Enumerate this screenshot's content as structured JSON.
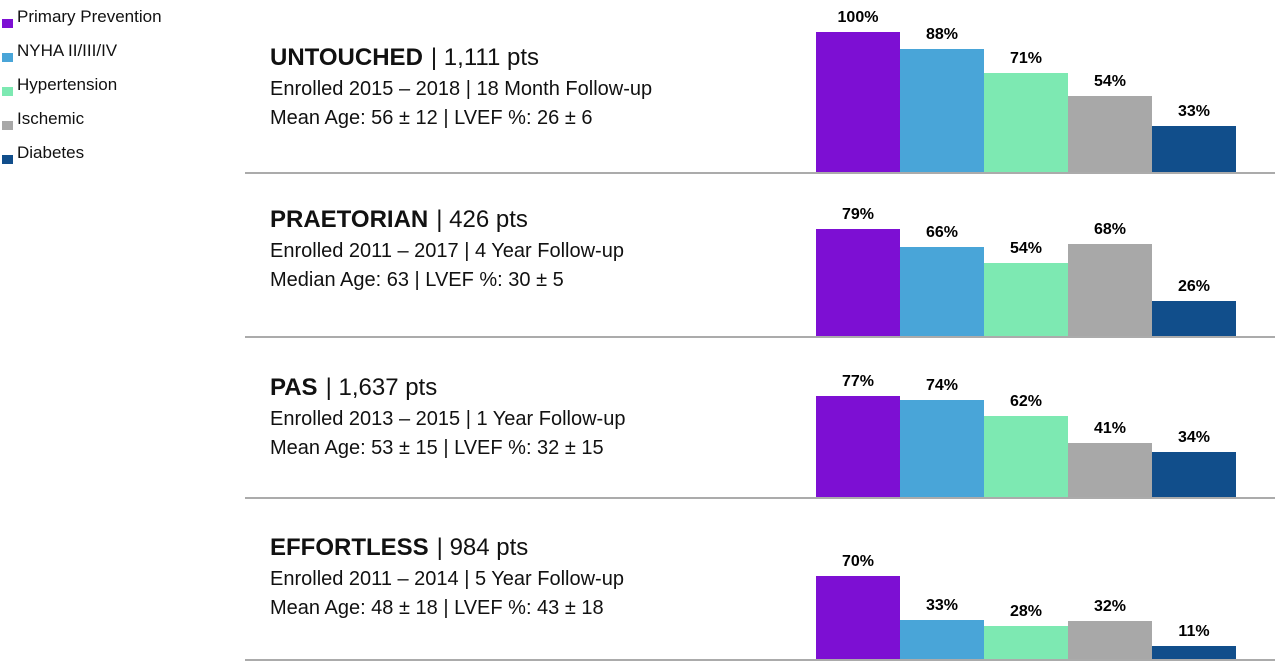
{
  "legend": {
    "items": [
      {
        "label": "Primary Prevention",
        "color": "#7d0fd3"
      },
      {
        "label": "NYHA II/III/IV",
        "color": "#49a5d8"
      },
      {
        "label": "Hypertension",
        "color": "#7de9b2"
      },
      {
        "label": "Ischemic",
        "color": "#a8a8a8"
      },
      {
        "label": "Diabetes",
        "color": "#114e8b"
      }
    ]
  },
  "studies": [
    {
      "name": "UNTOUCHED",
      "patients": "| 1,111 pts",
      "enrollment": "Enrolled 2015 – 2018 | 18 Month Follow-up",
      "demographics": "Mean Age: 56 ± 12 | LVEF %: 26 ± 6"
    },
    {
      "name": "PRAETORIAN",
      "patients": "| 426 pts",
      "enrollment": "Enrolled 2011 – 2017 | 4 Year Follow-up",
      "demographics": "Median Age: 63 | LVEF %: 30 ± 5"
    },
    {
      "name": "PAS",
      "patients": "| 1,637 pts",
      "enrollment": "Enrolled 2013 – 2015 | 1 Year Follow-up",
      "demographics": "Mean Age: 53 ± 15 | LVEF %: 32 ± 15"
    },
    {
      "name": "EFFORTLESS",
      "patients": "| 984 pts",
      "enrollment": "Enrolled 2011 – 2014 | 5 Year Follow-up",
      "demographics": "Mean Age: 48 ± 18 | LVEF %: 43 ± 18"
    }
  ],
  "chart_data": {
    "type": "bar",
    "categories": [
      "Primary Prevention",
      "NYHA II/III/IV",
      "Hypertension",
      "Ischemic",
      "Diabetes"
    ],
    "colors": [
      "#7d0fd3",
      "#49a5d8",
      "#7de9b2",
      "#a8a8a8",
      "#114e8b"
    ],
    "unit": "%",
    "ylim": [
      0,
      100
    ],
    "legend_position": "top-left",
    "value_labels": true,
    "grid": false,
    "groups": [
      {
        "name": "UNTOUCHED",
        "values": [
          100,
          88,
          71,
          54,
          33
        ]
      },
      {
        "name": "PRAETORIAN",
        "values": [
          79,
          66,
          54,
          68,
          26
        ]
      },
      {
        "name": "PAS",
        "values": [
          77,
          74,
          62,
          41,
          34
        ]
      },
      {
        "name": "EFFORTLESS",
        "values": [
          70,
          33,
          28,
          32,
          11
        ]
      }
    ]
  }
}
